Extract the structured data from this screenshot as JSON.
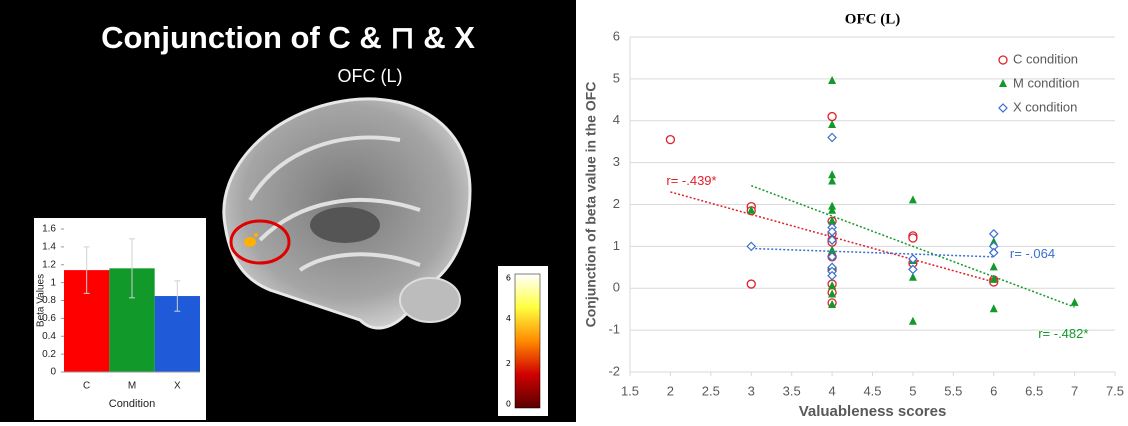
{
  "panel": {
    "title": "Conjunction of C & ⊓ & X",
    "region": "OFC (L)"
  },
  "chart_data": [
    {
      "type": "bar",
      "categories": [
        "C",
        "M",
        "X"
      ],
      "values": [
        1.14,
        1.16,
        0.85
      ],
      "errors": [
        0.26,
        0.33,
        0.17
      ],
      "colors": [
        "#ff0000",
        "#119a2a",
        "#1f5bd8"
      ],
      "ylim": [
        0,
        1.6
      ],
      "yticks": [
        0,
        0.2,
        0.4,
        0.6,
        0.8,
        1,
        1.2,
        1.4,
        1.6
      ],
      "xlabel": "Condition",
      "ylabel": "Beta Values"
    },
    {
      "type": "colorbar",
      "ylim": [
        0,
        6
      ],
      "yticks": [
        0,
        2,
        4,
        6
      ],
      "colors": [
        "#5a0000",
        "#d00000",
        "#ff8a00",
        "#ffff40",
        "#ffffff"
      ]
    },
    {
      "type": "scatter",
      "title": "OFC (L)",
      "xlabel": "Valuableness scores",
      "ylabel": "Conjunction of beta value in the OFC",
      "xlim": [
        1.5,
        7.5
      ],
      "xticks": [
        1.5,
        2,
        2.5,
        3,
        3.5,
        4,
        4.5,
        5,
        5.5,
        6,
        6.5,
        7,
        7.5
      ],
      "ylim": [
        -2,
        6
      ],
      "yticks": [
        -2,
        -1,
        0,
        1,
        2,
        3,
        4,
        5,
        6
      ],
      "grid": true,
      "series": [
        {
          "name": "C condition",
          "color": "#e0202a",
          "marker": "circle",
          "r_label": "r= -.439*",
          "x": [
            2,
            3,
            3,
            3,
            4,
            4,
            4,
            4,
            4,
            4,
            4,
            4,
            4,
            4,
            5,
            5,
            5,
            6,
            6
          ],
          "values": [
            3.55,
            1.95,
            1.85,
            0.1,
            4.1,
            1.6,
            1.3,
            1.15,
            1.1,
            0.75,
            0.45,
            0.1,
            -0.1,
            -0.35,
            1.25,
            1.2,
            0.6,
            0.2,
            0.15
          ],
          "trendline": {
            "x": [
              2,
              6
            ],
            "y": [
              2.3,
              0.15
            ]
          }
        },
        {
          "name": "M condition",
          "color": "#119a2a",
          "marker": "triangle",
          "r_label": "r= -.482*",
          "x": [
            3,
            4,
            4,
            4,
            4,
            4,
            4,
            4,
            4,
            4,
            4,
            4,
            4,
            4,
            5,
            5,
            5,
            5,
            6,
            6,
            6,
            6,
            6,
            7
          ],
          "values": [
            1.85,
            4.95,
            3.9,
            2.7,
            2.55,
            1.95,
            1.85,
            1.6,
            1.2,
            0.9,
            0.5,
            0.05,
            -0.15,
            -0.4,
            2.1,
            0.65,
            0.25,
            -0.8,
            1.1,
            0.9,
            0.5,
            0.2,
            -0.5,
            -0.35
          ],
          "trendline": {
            "x": [
              3,
              7
            ],
            "y": [
              2.45,
              -0.45
            ]
          }
        },
        {
          "name": "X condition",
          "color": "#3a6fd0",
          "marker": "diamond",
          "r_label": "r= -.064",
          "x": [
            3,
            4,
            4,
            4,
            4,
            4,
            4,
            4,
            4,
            5,
            5,
            6,
            6,
            6
          ],
          "values": [
            1.0,
            3.6,
            1.45,
            1.35,
            1.15,
            0.75,
            0.5,
            0.4,
            0.3,
            0.7,
            0.45,
            1.3,
            1.0,
            0.85
          ],
          "trendline": {
            "x": [
              3,
              6
            ],
            "y": [
              0.95,
              0.75
            ]
          }
        }
      ]
    }
  ]
}
